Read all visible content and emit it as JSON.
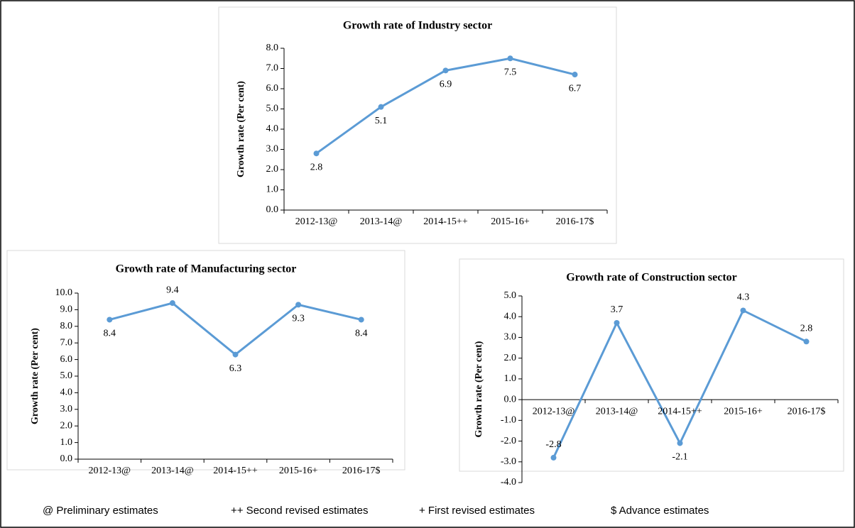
{
  "chart_data": [
    {
      "type": "line",
      "title": "Growth rate of Industry sector",
      "y_label": "Growth rate (Per cent)",
      "categories": [
        "2012-13@",
        "2013-14@",
        "2014-15++",
        "2015-16+",
        "2016-17$"
      ],
      "values": [
        2.8,
        5.1,
        6.9,
        7.5,
        6.7
      ],
      "color": "#5b9bd5",
      "ylim": [
        0,
        8
      ],
      "yticks": [
        {
          "value": 0,
          "label": "0.0"
        },
        {
          "value": 1,
          "label": "1.0"
        },
        {
          "value": 2,
          "label": "2.0"
        },
        {
          "value": 3,
          "label": "3.0"
        },
        {
          "value": 4,
          "label": "4.0"
        },
        {
          "value": 5,
          "label": "5.0"
        },
        {
          "value": 6,
          "label": "6.0"
        },
        {
          "value": 7,
          "label": "7.0"
        },
        {
          "value": 8,
          "label": "8.0"
        }
      ],
      "grid": false
    },
    {
      "type": "line",
      "title": "Growth rate of Manufacturing sector",
      "y_label": "Growth rate (Per cent)",
      "categories": [
        "2012-13@",
        "2013-14@",
        "2014-15++",
        "2015-16+",
        "2016-17$"
      ],
      "values": [
        8.4,
        9.4,
        6.3,
        9.3,
        8.4
      ],
      "color": "#5b9bd5",
      "ylim": [
        0,
        10
      ],
      "yticks": [
        {
          "value": 0,
          "label": "0.0"
        },
        {
          "value": 1,
          "label": "1.0"
        },
        {
          "value": 2,
          "label": "2.0"
        },
        {
          "value": 3,
          "label": "3.0"
        },
        {
          "value": 4,
          "label": "4.0"
        },
        {
          "value": 5,
          "label": "5.0"
        },
        {
          "value": 6,
          "label": "6.0"
        },
        {
          "value": 7,
          "label": "7.0"
        },
        {
          "value": 8,
          "label": "8.0"
        },
        {
          "value": 9,
          "label": "9.0"
        },
        {
          "value": 10,
          "label": "10.0"
        }
      ],
      "grid": false
    },
    {
      "type": "line",
      "title": "Growth rate of Construction sector",
      "y_label": "Growth rate (Per cent)",
      "categories": [
        "2012-13@",
        "2013-14@",
        "2014-15++",
        "2015-16+",
        "2016-17$"
      ],
      "values": [
        -2.8,
        3.7,
        -2.1,
        4.3,
        2.8
      ],
      "color": "#5b9bd5",
      "ylim": [
        -4,
        5
      ],
      "yticks": [
        {
          "value": -4,
          "label": "-4.0"
        },
        {
          "value": -3,
          "label": "-3.0"
        },
        {
          "value": -2,
          "label": "-2.0"
        },
        {
          "value": -1,
          "label": "-1.0"
        },
        {
          "value": 0,
          "label": "0.0"
        },
        {
          "value": 1,
          "label": "1.0"
        },
        {
          "value": 2,
          "label": "2.0"
        },
        {
          "value": 3,
          "label": "3.0"
        },
        {
          "value": 4,
          "label": "4.0"
        },
        {
          "value": 5,
          "label": "5.0"
        }
      ],
      "grid": false
    }
  ],
  "notes": [
    "@ Preliminary  estimates",
    "++ Second revised estimates",
    "+ First revised estimates",
    "$ Advance estimates"
  ]
}
